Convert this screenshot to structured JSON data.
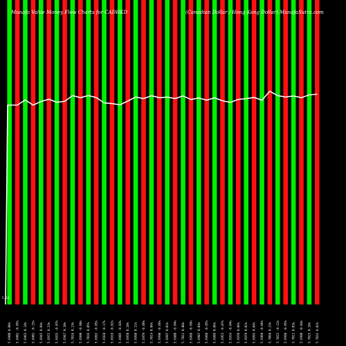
{
  "title_left": "Munafa Value Money Flow Charts for CADHKD",
  "title_right": "(Canadian Dollar / Hong Kong Dollar) MunafaSutra.com",
  "colors": {
    "background": "#000000",
    "up": "#00ee00",
    "down": "#ff1111",
    "grid": "#cc7700",
    "price_line": "#ffffff",
    "text": "#ffffff"
  },
  "chart_data": {
    "type": "bar",
    "title": "Munafa Value Money Flow Charts for CADHKD",
    "subtitle": "(Canadian Dollar / Hong Kong Dollar) MunafaSutra.com",
    "y_axis_label": "5.63",
    "ylim": [
      0,
      100
    ],
    "categories": [
      "5.6900 0.00%",
      "5.6902 -0.05%",
      "5.6963 0.14%",
      "5.6901 -0.15%",
      "5.6945 0.04%",
      "5.6972 0.13%",
      "5.6935 -0.07%",
      "5.6947 0.10%",
      "5.7016 0.13%",
      "5.6990 -0.08%",
      "5.7016 0.05%",
      "5.6992 -0.05%",
      "5.6928 -0.17%",
      "5.6919 -0.02%",
      "5.6905 -0.03%",
      "5.6950 0.10%",
      "5.6998 0.11%",
      "5.6979 -0.06%",
      "5.7014 0.06%",
      "5.6990 -0.06%",
      "5.6997 0.02%",
      "5.6980 -0.04%",
      "5.7012 0.08%",
      "5.6968 -0.09%",
      "5.6987 0.04%",
      "5.6960 -0.05%",
      "5.6989 0.06%",
      "5.6953 -0.07%",
      "5.6934 -0.04%",
      "5.6970 0.06%",
      "5.6979 0.02%",
      "5.6993 0.04%",
      "5.6960 -0.06%",
      "5.7068 0.23%",
      "5.7015 -0.12%",
      "5.6998 -0.05%",
      "5.7011 0.03%",
      "5.6990 -0.04%",
      "5.7025 0.10%",
      "5.7032 0.02%"
    ],
    "series": [
      {
        "values": [
          100,
          100,
          100,
          100,
          100,
          100,
          100,
          100,
          100,
          100,
          100,
          100,
          100,
          100,
          100,
          100,
          100,
          100,
          100,
          100,
          100,
          100,
          100,
          100,
          100,
          100,
          100,
          100,
          100,
          100,
          100,
          100,
          100,
          100,
          100,
          100,
          100,
          100,
          100,
          100
        ],
        "colors": [
          "green",
          "red",
          "green",
          "red",
          "green",
          "red",
          "green",
          "red",
          "green",
          "red",
          "green",
          "red",
          "green",
          "red",
          "green",
          "red",
          "green",
          "red",
          "green",
          "red",
          "green",
          "red",
          "green",
          "red",
          "green",
          "red",
          "green",
          "red",
          "green",
          "red",
          "green",
          "red",
          "green",
          "red",
          "green",
          "red",
          "green",
          "red",
          "green",
          "red"
        ]
      }
    ],
    "grid": true,
    "legend": "none"
  }
}
